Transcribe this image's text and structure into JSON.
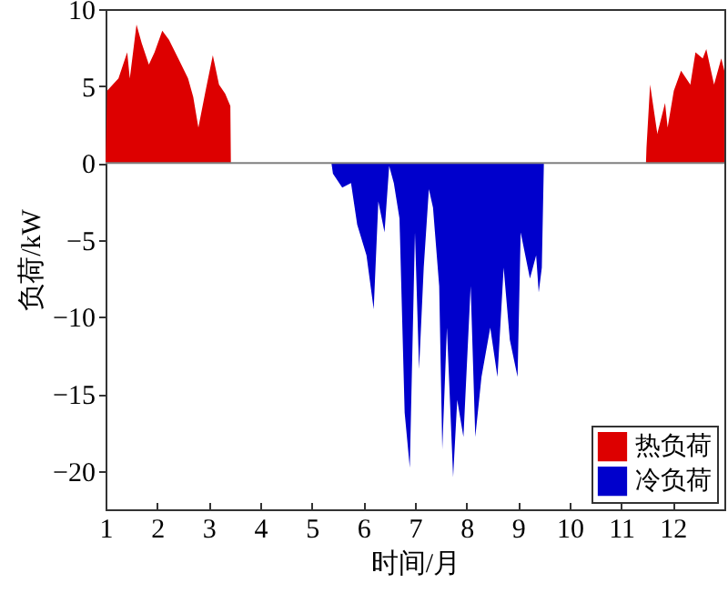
{
  "chart_data": {
    "type": "area",
    "xlabel": "时间/月",
    "ylabel": "负荷/kW",
    "xlim": [
      1,
      13
    ],
    "xticks": [
      1,
      2,
      3,
      4,
      5,
      6,
      7,
      8,
      9,
      10,
      11,
      12
    ],
    "ylim": [
      -22.5,
      10
    ],
    "yticks": [
      -20,
      -15,
      -10,
      -5,
      0,
      5,
      10
    ],
    "grid": false,
    "legend": "bottom right",
    "ref_lines": [
      {
        "axis": "y",
        "value": 0,
        "color": "#808080"
      }
    ],
    "series": [
      {
        "name": "热负荷",
        "color": "#dd0000",
        "x": [
          1,
          1.03,
          1.25,
          1.42,
          1.47,
          1.6,
          1.7,
          1.84,
          1.95,
          2.1,
          2.23,
          2.41,
          2.6,
          2.7,
          2.8,
          2.94,
          3.08,
          3.2,
          3.32,
          3.42,
          3.43,
          11.48,
          11.49,
          11.56,
          11.7,
          11.85,
          11.9,
          12.02,
          12.16,
          12.34,
          12.44,
          12.58,
          12.65,
          12.8,
          12.94,
          13
        ],
        "values": [
          0,
          4.7,
          5.5,
          7.2,
          5.5,
          9.0,
          7.8,
          6.4,
          7.2,
          8.6,
          8.0,
          6.8,
          5.5,
          4.3,
          2.3,
          4.7,
          7.0,
          5.1,
          4.5,
          3.7,
          0,
          0,
          1.0,
          5.1,
          1.9,
          3.9,
          2.3,
          4.7,
          6.0,
          5.1,
          7.2,
          6.8,
          7.4,
          5.1,
          6.8,
          6.0
        ]
      },
      {
        "name": "冷负荷",
        "color": "#0000cc",
        "x": [
          5.38,
          5.41,
          5.59,
          5.76,
          5.88,
          6.06,
          6.2,
          6.29,
          6.41,
          6.5,
          6.59,
          6.7,
          6.8,
          6.9,
          7.0,
          7.08,
          7.17,
          7.27,
          7.35,
          7.47,
          7.53,
          7.62,
          7.74,
          7.82,
          7.94,
          8.08,
          8.17,
          8.29,
          8.46,
          8.6,
          8.72,
          8.84,
          8.99,
          9.05,
          9.23,
          9.35,
          9.4,
          9.46,
          9.5
        ],
        "values": [
          0,
          -0.7,
          -1.6,
          -1.3,
          -4.0,
          -6.0,
          -9.5,
          -2.5,
          -4.5,
          -0.2,
          -1.3,
          -3.6,
          -16.2,
          -19.8,
          -4.5,
          -13.4,
          -6.8,
          -1.7,
          -2.9,
          -8.0,
          -18.6,
          -10.7,
          -20.4,
          -15.4,
          -17.8,
          -8.0,
          -17.8,
          -13.9,
          -10.7,
          -13.9,
          -6.8,
          -11.5,
          -13.9,
          -4.5,
          -7.5,
          -6.0,
          -8.4,
          -6.8,
          0
        ]
      }
    ]
  }
}
